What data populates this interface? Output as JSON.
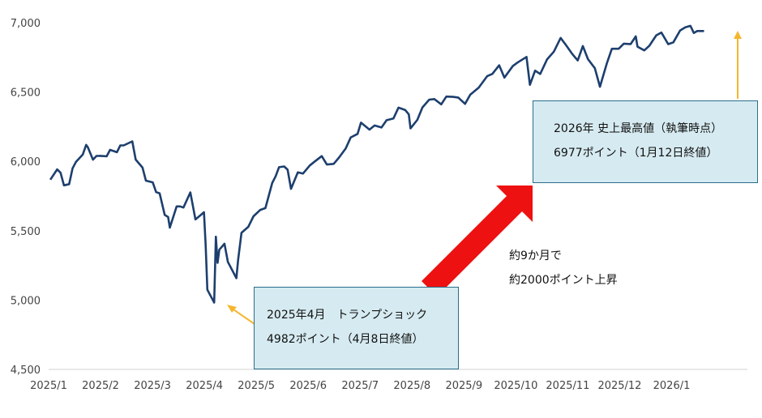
{
  "colors": {
    "line": "#1d3f6e",
    "big_arrow": "#ee1111",
    "pointer_arrow": "#f5b730",
    "callout_bg": "#d6ebf1",
    "callout_border": "#2a6d8a",
    "axis": "#d0d0d0"
  },
  "annotations": {
    "high_line1": "2026年 史上最高値（執筆時点）",
    "high_line2": "6977ポイント（1月12日終値）",
    "low_line1": "2025年4月　トランプショック",
    "low_line2": "4982ポイント（4月8日終値）",
    "note_line1": "約9か月で",
    "note_line2": "約2000ポイント上昇"
  },
  "chart_data": {
    "type": "line",
    "ylim": [
      4500,
      7000
    ],
    "yticks": [
      "4,500",
      "5,000",
      "5,500",
      "6,000",
      "6,500",
      "7,000"
    ],
    "ytick_values": [
      4500,
      5000,
      5500,
      6000,
      6500,
      7000
    ],
    "xticks": [
      "2025/1",
      "2025/2",
      "2025/3",
      "2025/4",
      "2025/5",
      "2025/6",
      "2025/7",
      "2025/8",
      "2025/9",
      "2025/10",
      "2025/11",
      "2025/12",
      "2026/1"
    ],
    "grid": false,
    "series": [
      {
        "x": [
          "2025-01-02",
          "2025-01-06",
          "2025-01-08",
          "2025-01-10",
          "2025-01-13",
          "2025-01-15",
          "2025-01-17",
          "2025-01-21",
          "2025-01-23",
          "2025-01-24",
          "2025-01-27",
          "2025-01-29",
          "2025-01-31",
          "2025-02-04",
          "2025-02-06",
          "2025-02-10",
          "2025-02-12",
          "2025-02-14",
          "2025-02-19",
          "2025-02-21",
          "2025-02-25",
          "2025-02-27",
          "2025-03-03",
          "2025-03-05",
          "2025-03-07",
          "2025-03-10",
          "2025-03-12",
          "2025-03-13",
          "2025-03-17",
          "2025-03-19",
          "2025-03-21",
          "2025-03-25",
          "2025-03-28",
          "2025-03-31",
          "2025-04-02",
          "2025-04-03",
          "2025-04-04",
          "2025-04-08",
          "2025-04-09",
          "2025-04-10",
          "2025-04-11",
          "2025-04-14",
          "2025-04-16",
          "2025-04-21",
          "2025-04-22",
          "2025-04-24",
          "2025-04-28",
          "2025-05-01",
          "2025-05-05",
          "2025-05-08",
          "2025-05-12",
          "2025-05-14",
          "2025-05-16",
          "2025-05-19",
          "2025-05-21",
          "2025-05-23",
          "2025-05-27",
          "2025-05-30",
          "2025-06-03",
          "2025-06-06",
          "2025-06-10",
          "2025-06-13",
          "2025-06-17",
          "2025-06-20",
          "2025-06-24",
          "2025-06-27",
          "2025-07-01",
          "2025-07-03",
          "2025-07-08",
          "2025-07-11",
          "2025-07-15",
          "2025-07-18",
          "2025-07-22",
          "2025-07-25",
          "2025-07-29",
          "2025-07-31",
          "2025-08-01",
          "2025-08-05",
          "2025-08-08",
          "2025-08-12",
          "2025-08-15",
          "2025-08-19",
          "2025-08-22",
          "2025-08-26",
          "2025-08-29",
          "2025-09-02",
          "2025-09-05",
          "2025-09-10",
          "2025-09-15",
          "2025-09-18",
          "2025-09-22",
          "2025-09-25",
          "2025-09-30",
          "2025-10-03",
          "2025-10-08",
          "2025-10-10",
          "2025-10-13",
          "2025-10-16",
          "2025-10-20",
          "2025-10-24",
          "2025-10-28",
          "2025-10-31",
          "2025-11-04",
          "2025-11-07",
          "2025-11-10",
          "2025-11-13",
          "2025-11-17",
          "2025-11-20",
          "2025-11-24",
          "2025-11-27",
          "2025-12-01",
          "2025-12-04",
          "2025-12-08",
          "2025-12-11",
          "2025-12-12",
          "2025-12-16",
          "2025-12-19",
          "2025-12-23",
          "2025-12-26",
          "2025-12-30",
          "2026-01-02",
          "2026-01-06",
          "2026-01-09",
          "2026-01-12",
          "2026-01-14",
          "2026-01-16",
          "2026-01-20"
        ],
        "values": [
          5868,
          5942,
          5918,
          5827,
          5836,
          5950,
          5996,
          6049,
          6119,
          6101,
          6012,
          6039,
          6040,
          6037,
          6083,
          6066,
          6115,
          6115,
          6144,
          6013,
          5955,
          5861,
          5849,
          5778,
          5770,
          5614,
          5599,
          5522,
          5675,
          5675,
          5667,
          5776,
          5581,
          5612,
          5633,
          5396,
          5074,
          4982,
          5457,
          5268,
          5363,
          5406,
          5275,
          5158,
          5288,
          5485,
          5528,
          5604,
          5650,
          5663,
          5844,
          5892,
          5958,
          5963,
          5940,
          5802,
          5921,
          5912,
          5970,
          6000,
          6038,
          5977,
          5982,
          6025,
          6092,
          6173,
          6198,
          6279,
          6229,
          6259,
          6244,
          6297,
          6309,
          6388,
          6370,
          6339,
          6238,
          6299,
          6389,
          6445,
          6449,
          6411,
          6467,
          6465,
          6460,
          6415,
          6481,
          6532,
          6615,
          6631,
          6693,
          6604,
          6688,
          6715,
          6753,
          6552,
          6654,
          6630,
          6735,
          6791,
          6890,
          6840,
          6771,
          6728,
          6832,
          6737,
          6672,
          6538,
          6705,
          6812,
          6812,
          6849,
          6846,
          6901,
          6827,
          6800,
          6834,
          6909,
          6929,
          6845,
          6858,
          6944,
          6966,
          6977,
          6926,
          6940,
          6940
        ]
      }
    ]
  }
}
